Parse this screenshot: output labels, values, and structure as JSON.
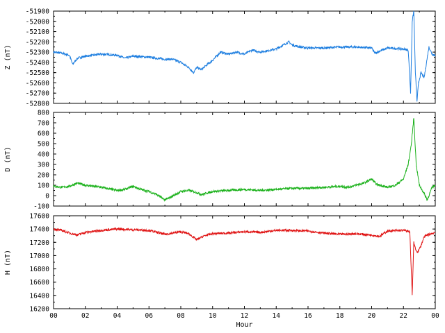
{
  "chart_data": [
    {
      "type": "line",
      "ylabel": "Z (nT)",
      "ylim": [
        -52800,
        -51900
      ],
      "yticks": [
        -51900,
        -52000,
        -52100,
        -52200,
        -52300,
        -52400,
        -52500,
        -52600,
        -52700,
        -52800
      ],
      "xlim": [
        0,
        24
      ],
      "color": "#1f7fe0",
      "x": [
        0,
        0.5,
        1.0,
        1.2,
        1.5,
        2.0,
        3.0,
        4.0,
        4.5,
        5.0,
        6.0,
        7.0,
        7.5,
        8.0,
        8.5,
        8.8,
        9.0,
        9.3,
        9.6,
        10.0,
        10.5,
        11.0,
        11.5,
        12.0,
        12.5,
        13.0,
        14.0,
        14.8,
        15.0,
        15.5,
        16.0,
        17.0,
        18.0,
        19.0,
        20.0,
        20.2,
        21.0,
        22.0,
        22.3,
        22.45,
        22.55,
        22.65,
        22.75,
        22.85,
        22.95,
        23.1,
        23.3,
        23.6,
        23.8,
        24.0
      ],
      "y": [
        -52300,
        -52310,
        -52330,
        -52420,
        -52360,
        -52340,
        -52320,
        -52330,
        -52360,
        -52340,
        -52350,
        -52370,
        -52370,
        -52400,
        -52450,
        -52500,
        -52450,
        -52470,
        -52430,
        -52380,
        -52300,
        -52320,
        -52300,
        -52320,
        -52280,
        -52300,
        -52270,
        -52200,
        -52230,
        -52250,
        -52260,
        -52260,
        -52250,
        -52250,
        -52260,
        -52310,
        -52260,
        -52270,
        -52280,
        -52700,
        -52000,
        -51900,
        -52500,
        -52780,
        -52600,
        -52500,
        -52550,
        -52250,
        -52320,
        -52330
      ]
    },
    {
      "type": "line",
      "ylabel": "D (nT)",
      "ylim": [
        -100,
        800
      ],
      "yticks": [
        800,
        700,
        600,
        500,
        400,
        300,
        200,
        100,
        0,
        -100
      ],
      "xlim": [
        0,
        24
      ],
      "color": "#1db21d",
      "x": [
        0,
        0.5,
        1.0,
        1.5,
        2.0,
        3.0,
        4.0,
        4.5,
        5.0,
        5.5,
        6.0,
        6.5,
        7.0,
        7.3,
        8.0,
        8.5,
        9.0,
        9.3,
        10.0,
        11.0,
        12.0,
        13.0,
        14.0,
        15.0,
        16.0,
        17.0,
        18.0,
        18.5,
        19.0,
        19.5,
        20.0,
        20.3,
        21.0,
        21.5,
        22.0,
        22.3,
        22.5,
        22.65,
        22.8,
        23.0,
        23.3,
        23.5,
        23.8,
        24.0
      ],
      "y": [
        90,
        80,
        90,
        120,
        100,
        80,
        50,
        60,
        90,
        60,
        40,
        10,
        -40,
        -20,
        40,
        50,
        30,
        10,
        40,
        50,
        60,
        50,
        60,
        70,
        70,
        80,
        90,
        80,
        100,
        120,
        160,
        110,
        80,
        100,
        160,
        300,
        500,
        750,
        300,
        100,
        20,
        -40,
        80,
        100
      ]
    },
    {
      "type": "line",
      "ylabel": "H (nT)",
      "ylim": [
        16200,
        17600
      ],
      "yticks": [
        17600,
        17400,
        17200,
        17000,
        16800,
        16600,
        16400,
        16200
      ],
      "xlim": [
        0,
        24
      ],
      "xticks": [
        "00",
        "02",
        "04",
        "06",
        "08",
        "10",
        "12",
        "14",
        "16",
        "18",
        "20",
        "22",
        "00"
      ],
      "xlabel": "Hour",
      "color": "#e01515",
      "x": [
        0,
        0.5,
        1.0,
        1.5,
        2.0,
        3.0,
        4.0,
        5.0,
        6.0,
        7.0,
        8.0,
        8.5,
        9.0,
        9.5,
        10.0,
        11.0,
        12.0,
        13.0,
        14.0,
        15.0,
        16.0,
        17.0,
        18.0,
        19.0,
        20.0,
        20.5,
        21.0,
        22.0,
        22.4,
        22.55,
        22.65,
        22.75,
        22.9,
        23.1,
        23.3,
        23.5,
        24.0
      ],
      "y": [
        17400,
        17380,
        17340,
        17310,
        17350,
        17380,
        17400,
        17390,
        17380,
        17320,
        17360,
        17330,
        17240,
        17300,
        17330,
        17340,
        17360,
        17350,
        17380,
        17380,
        17370,
        17340,
        17320,
        17330,
        17310,
        17290,
        17370,
        17380,
        17360,
        16400,
        17200,
        17100,
        17050,
        17150,
        17280,
        17310,
        17350
      ]
    }
  ]
}
